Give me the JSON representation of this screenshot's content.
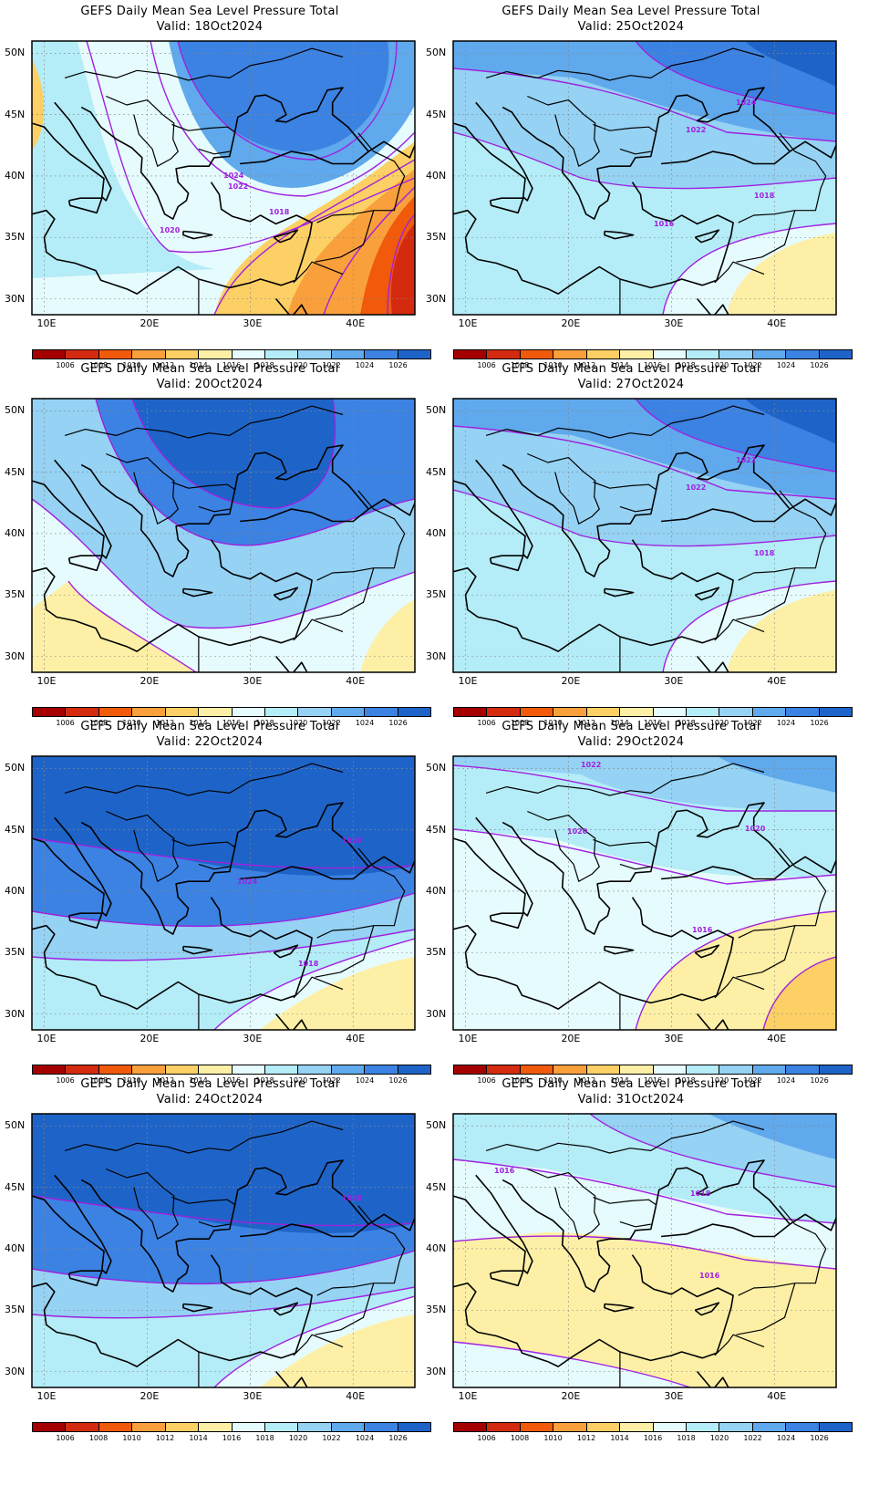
{
  "title": "GEFS Daily Mean Sea Level Pressure Total",
  "panels": [
    {
      "valid": "Valid: 18Oct2024",
      "state": "low_se",
      "contours": [
        "1024",
        "1022",
        "1018",
        "1020"
      ]
    },
    {
      "valid": "Valid: 25Oct2024",
      "state": "mod_high",
      "contours": [
        "1024",
        "1022",
        "1018",
        "1016"
      ]
    },
    {
      "valid": "Valid: 20Oct2024",
      "state": "high_ne",
      "contours": []
    },
    {
      "valid": "Valid: 27Oct2024",
      "state": "mod_high",
      "contours": [
        "1022",
        "1022",
        "1018"
      ]
    },
    {
      "valid": "Valid: 22Oct2024",
      "state": "strong_high",
      "contours": [
        "1026",
        "1024",
        "1018"
      ]
    },
    {
      "valid": "Valid: 29Oct2024",
      "state": "weak",
      "contours": [
        "1022",
        "1020",
        "1020",
        "1016"
      ]
    },
    {
      "valid": "Valid: 24Oct2024",
      "state": "strong_high",
      "contours": [
        "1020"
      ]
    },
    {
      "valid": "Valid: 31Oct2024",
      "state": "low_south",
      "contours": [
        "1016",
        "1018",
        "1016"
      ]
    }
  ],
  "lat_labels": [
    "50N",
    "45N",
    "40N",
    "35N",
    "30N"
  ],
  "lon_labels": [
    "10E",
    "20E",
    "30E",
    "40E"
  ],
  "legend": {
    "labels": [
      "1006",
      "1008",
      "1010",
      "1012",
      "1014",
      "1016",
      "1018",
      "1020",
      "1022",
      "1024",
      "1026"
    ],
    "colors": [
      "#a50000",
      "#d42b10",
      "#f05a0a",
      "#f9a03c",
      "#fcd064",
      "#fdf0a6",
      "#e6fbfd",
      "#b4ecf7",
      "#95d2f4",
      "#5fa9ec",
      "#3b82e3",
      "#1e64c8"
    ]
  }
}
